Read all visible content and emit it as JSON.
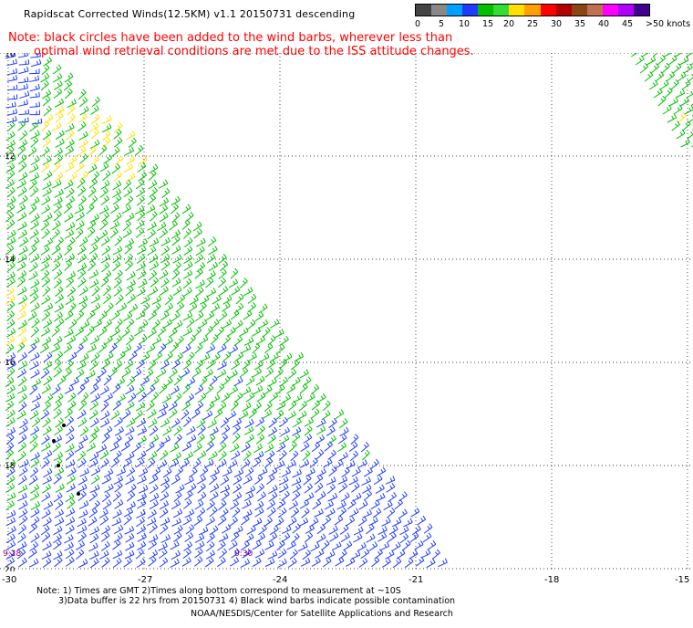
{
  "title": "Rapidscat Corrected Winds(12.5KM) v1.1 20150731 descending",
  "note": {
    "line1": "Note: black circles have been added to the wind barbs, wherever less than",
    "line2": "optimal wind retrieval conditions are met due to the ISS attitude changes."
  },
  "colorbar": {
    "labels": [
      "0",
      "5",
      "10",
      "15",
      "20",
      "25",
      "30",
      "35",
      "40",
      "45",
      ">50 knots"
    ],
    "colors": [
      "#444444",
      "#888888",
      "#00a0ff",
      "#1e3cff",
      "#00c000",
      "#33dd33",
      "#ffe000",
      "#ffa000",
      "#ff0000",
      "#b00000",
      "#8b4513",
      "#c07050",
      "#ff00ff",
      "#b000ff",
      "#400090"
    ]
  },
  "map": {
    "lon_labels": [
      "-30",
      "-27",
      "-24",
      "-21",
      "-18",
      "-15"
    ],
    "lat_labels": [
      "10",
      "12",
      "14",
      "16",
      "18",
      "20"
    ],
    "time_labels": [
      "9:28",
      "0:30"
    ]
  },
  "footnote": {
    "line1": "Note: 1) Times are GMT 2)Times along bottom correspond to measurement at ~10S",
    "line2": "3)Data buffer is 22 hrs from 20150731 4) Black wind barbs indicate possible contamination"
  },
  "credit": "NOAA/NESDIS/Center for Satellite Applications and Research"
}
